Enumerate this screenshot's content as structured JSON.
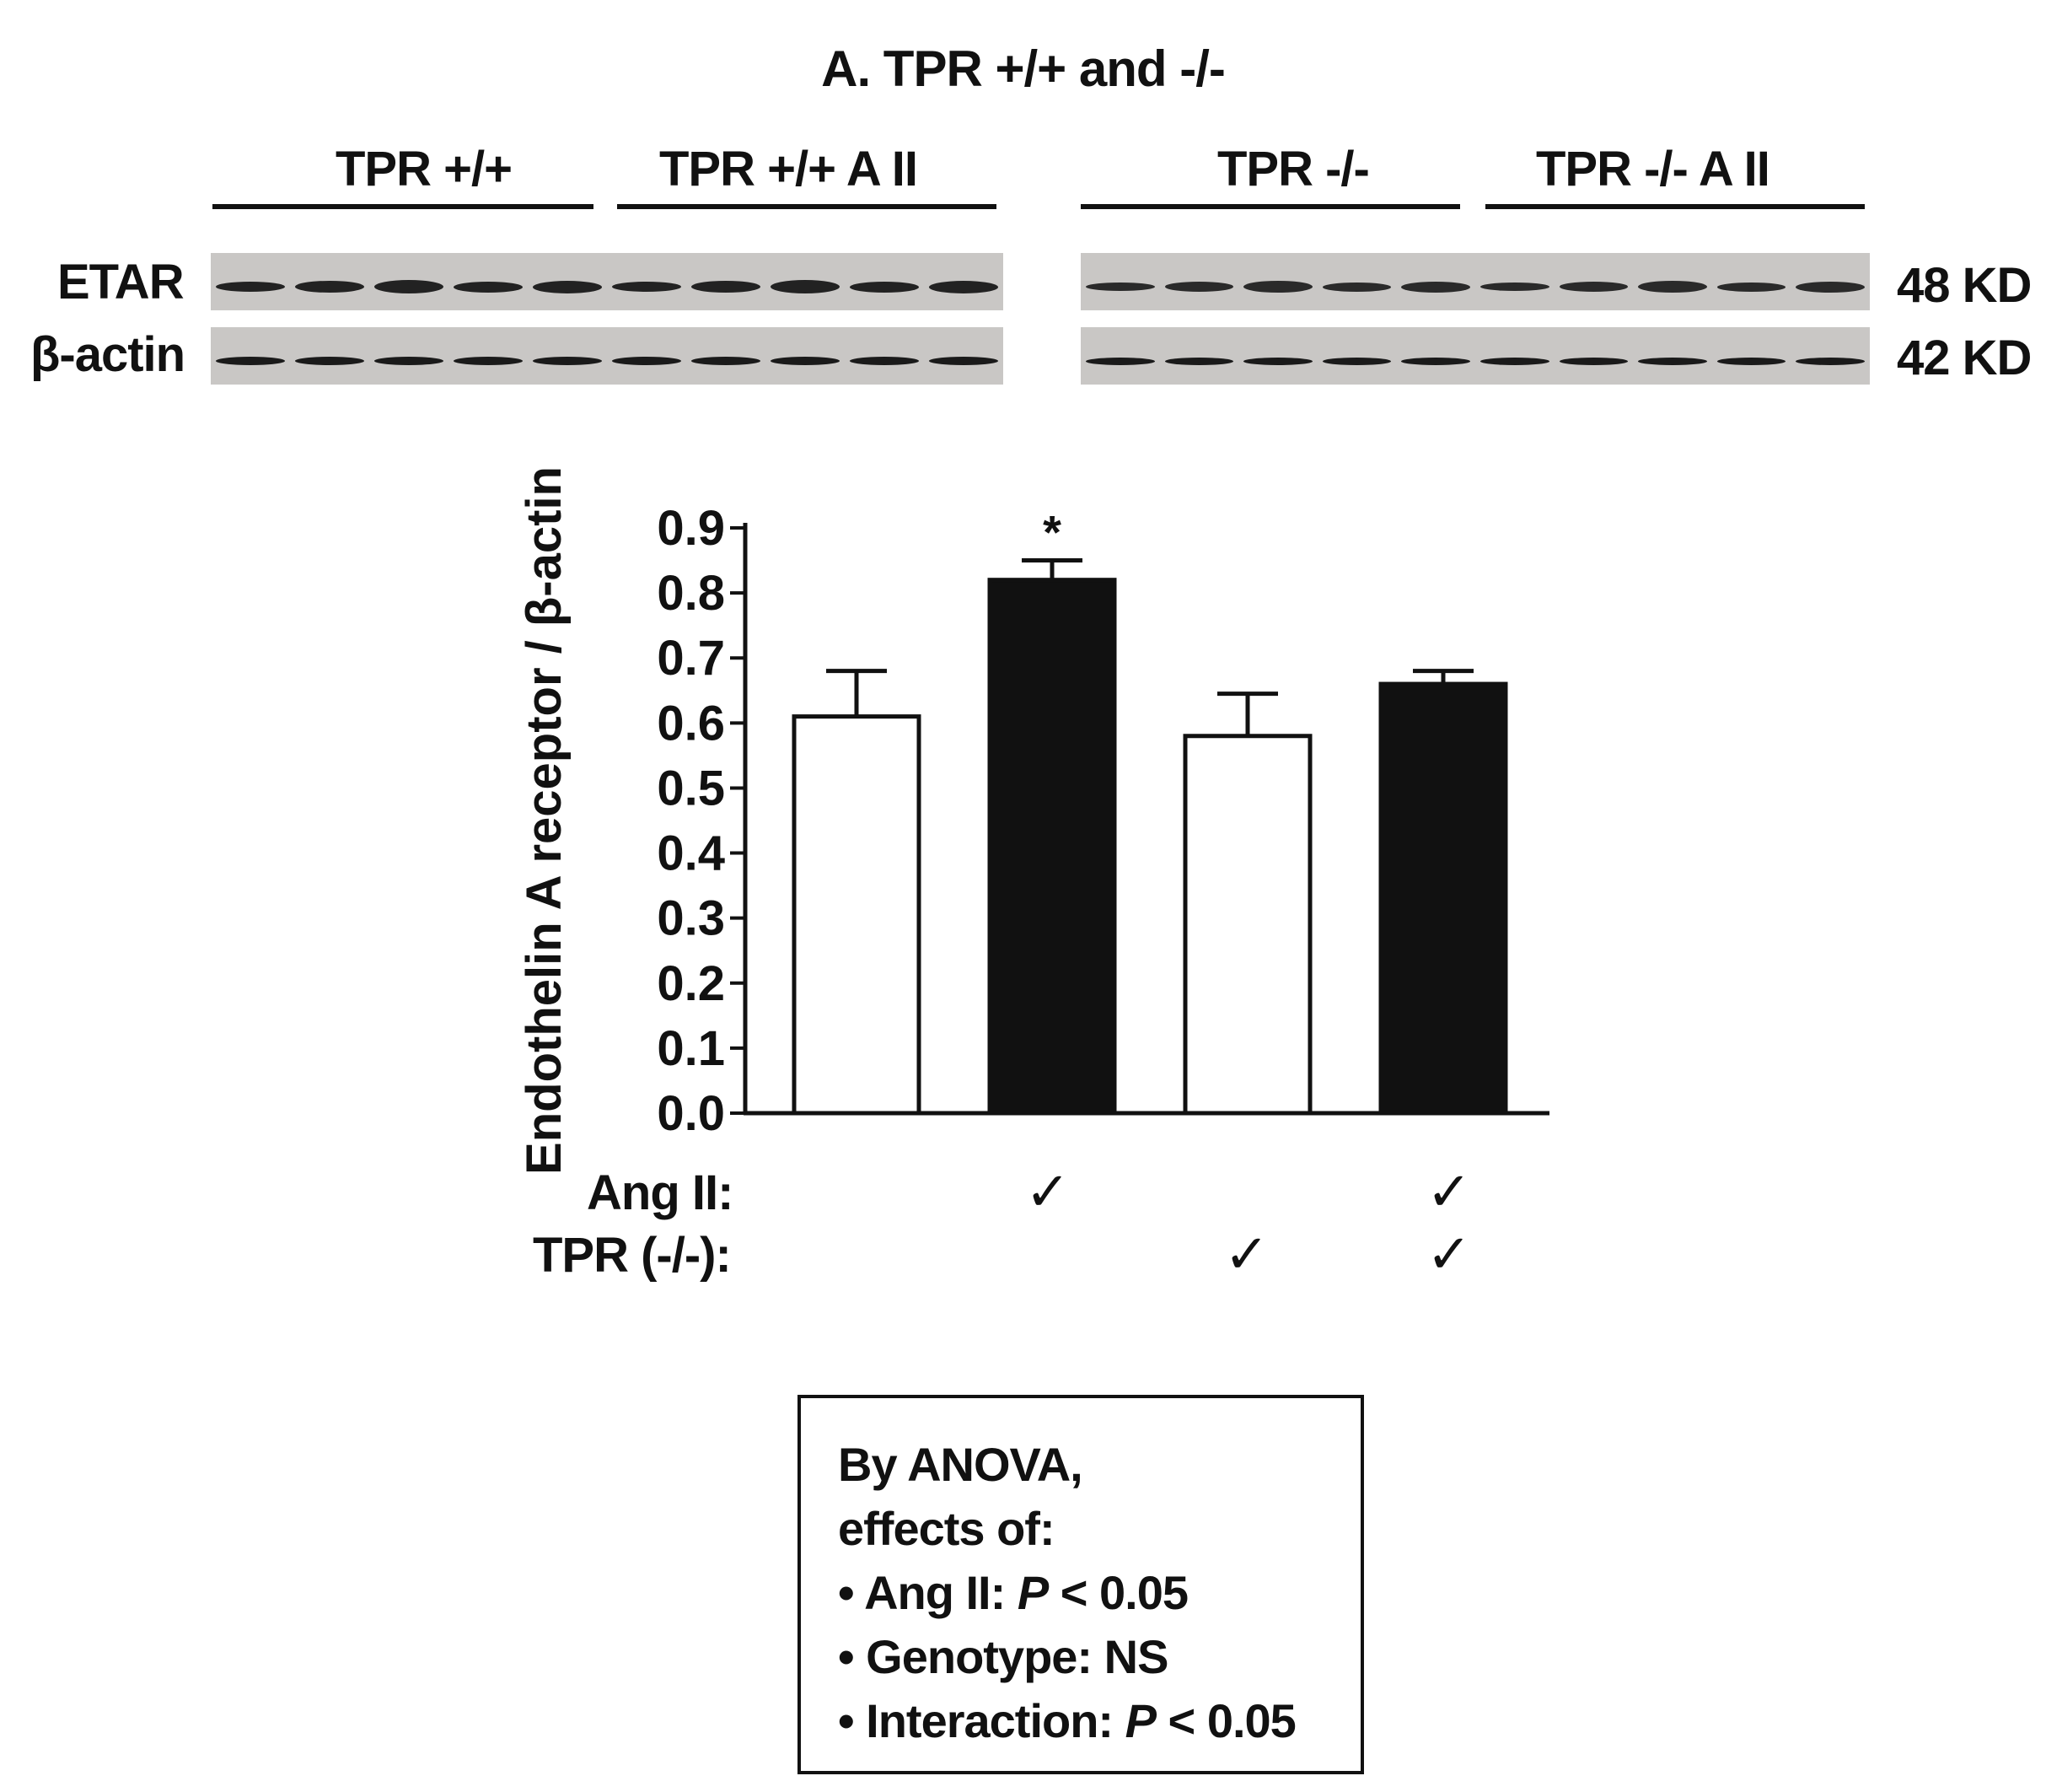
{
  "figure": {
    "title": "A. TPR +/+ and -/-",
    "groups": [
      {
        "label": "TPR +/+"
      },
      {
        "label": "TPR +/+ A II"
      },
      {
        "label": "TPR -/-"
      },
      {
        "label": "TPR -/- A II"
      }
    ],
    "blot": {
      "rows": [
        {
          "label": "ETAR",
          "kd": "48 KD"
        },
        {
          "label": "β-actin",
          "kd": "42 KD"
        }
      ]
    }
  },
  "chart_data": {
    "type": "bar",
    "title": "",
    "xlabel": "",
    "ylabel": "Endothelin A receptor / β-actin",
    "ylim": [
      0,
      0.9
    ],
    "yticks": [
      "0.0",
      "0.1",
      "0.2",
      "0.3",
      "0.4",
      "0.5",
      "0.6",
      "0.7",
      "0.8",
      "0.9"
    ],
    "categories": [
      "TPR +/+",
      "TPR +/+ A II",
      "TPR -/-",
      "TPR -/- A II"
    ],
    "values": [
      0.61,
      0.82,
      0.58,
      0.66
    ],
    "errors": [
      0.07,
      0.03,
      0.065,
      0.02
    ],
    "bar_colors": [
      "#ffffff",
      "#111111",
      "#ffffff",
      "#111111"
    ],
    "annotations": [
      "",
      "*",
      "",
      ""
    ],
    "grid": false,
    "legend": "none"
  },
  "conditions": {
    "rows": [
      {
        "label": "Ang II:",
        "checks": [
          false,
          true,
          false,
          true
        ]
      },
      {
        "label": "TPR (-/-):",
        "checks": [
          false,
          false,
          true,
          true
        ]
      }
    ],
    "check_glyph": "✓"
  },
  "anova": {
    "lines": [
      "By ANOVA,",
      "effects of:",
      "• Ang II: ",
      "• Genotype: NS",
      "• Interaction: "
    ],
    "angii_p": "P",
    "angii_rest": " < 0.05",
    "interaction_p": "P",
    "interaction_rest": " < 0.05"
  }
}
